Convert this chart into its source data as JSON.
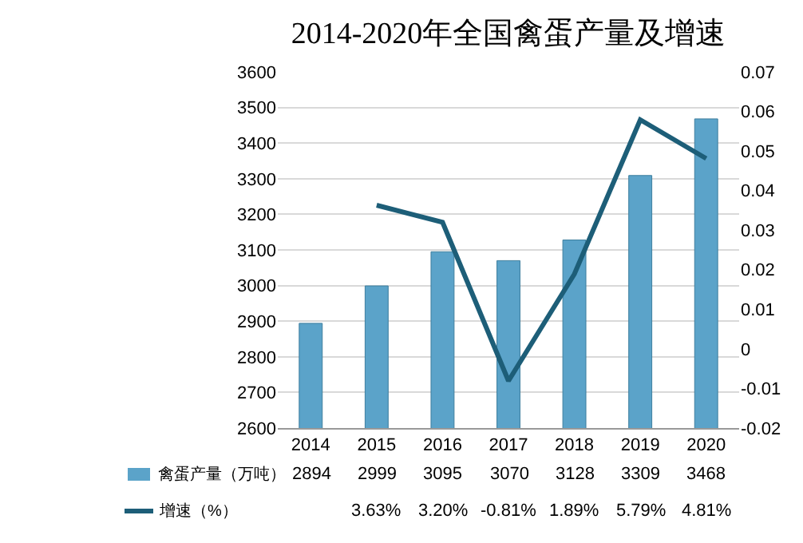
{
  "chart_data": {
    "type": "bar",
    "title": "2014-2020年全国禽蛋产量及增速",
    "categories": [
      "2014",
      "2015",
      "2016",
      "2017",
      "2018",
      "2019",
      "2020"
    ],
    "series": [
      {
        "name": "禽蛋产量（万吨）",
        "color": "#5ba3c9",
        "values": [
          2894,
          2999,
          3095,
          3070,
          3128,
          3309,
          3468
        ],
        "value_labels": [
          "2894",
          "2999",
          "3095",
          "3070",
          "3128",
          "3309",
          "3468"
        ]
      },
      {
        "name": "增速（%）",
        "type": "line",
        "axis": "y2",
        "color": "#1d5e78",
        "values": [
          null,
          0.0363,
          0.032,
          -0.0081,
          0.0189,
          0.0579,
          0.0481
        ],
        "value_labels": [
          null,
          "3.63%",
          "3.20%",
          "-0.81%",
          "1.89%",
          "5.79%",
          "4.81%"
        ]
      }
    ],
    "ylim": [
      2600,
      3600
    ],
    "yticks": [
      2600,
      2700,
      2800,
      2900,
      3000,
      3100,
      3200,
      3300,
      3400,
      3500,
      3600
    ],
    "y2lim": [
      -0.02,
      0.07
    ],
    "y2ticks": [
      -0.02,
      -0.01,
      0,
      0.01,
      0.02,
      0.03,
      0.04,
      0.05,
      0.06,
      0.07
    ],
    "grid": "y",
    "legend": "bottom"
  }
}
